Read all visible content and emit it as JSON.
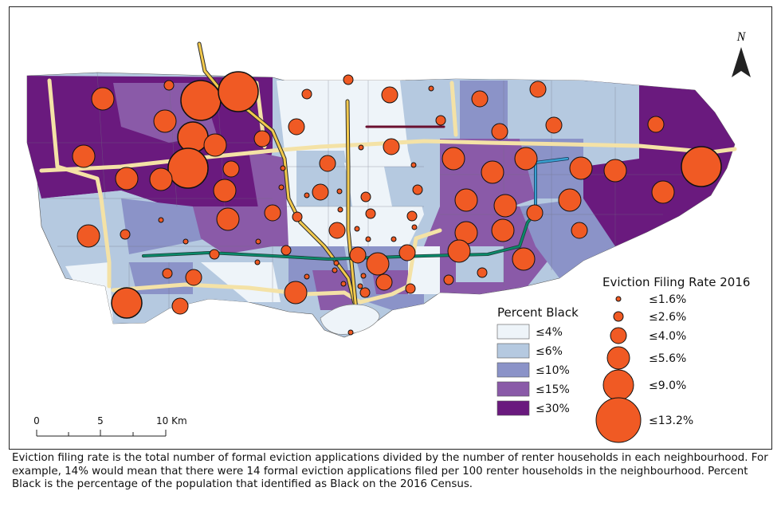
{
  "north_label": "N",
  "legend_black": {
    "title": "Percent Black",
    "classes": [
      {
        "label": "≤4%",
        "color": "#eef4f9"
      },
      {
        "label": "≤6%",
        "color": "#b5c9e0"
      },
      {
        "label": "≤10%",
        "color": "#8b93c8"
      },
      {
        "label": "≤15%",
        "color": "#8a5aa8"
      },
      {
        "label": "≤30%",
        "color": "#6a1a7e"
      }
    ]
  },
  "legend_eviction": {
    "title": "Eviction Filing Rate 2016",
    "circle_color": "#f05a24",
    "classes": [
      {
        "label": "≤1.6%"
      },
      {
        "label": "≤2.6%"
      },
      {
        "label": "≤4.0%"
      },
      {
        "label": "≤5.6%"
      },
      {
        "label": "≤9.0%"
      },
      {
        "label": "≤13.2%"
      }
    ]
  },
  "scale_bar": {
    "labels": [
      "0",
      "5",
      "10 Km"
    ]
  },
  "caption": "Eviction filing rate is the total number of formal eviction applications divided by the number of renter households in each neighbourhood. For example, 14% would mean that there were 14 formal eviction applications filed per 100 renter households in the neighbourhood. Percent Black is the percentage of the population that identified as Black on the 2016 Census."
}
